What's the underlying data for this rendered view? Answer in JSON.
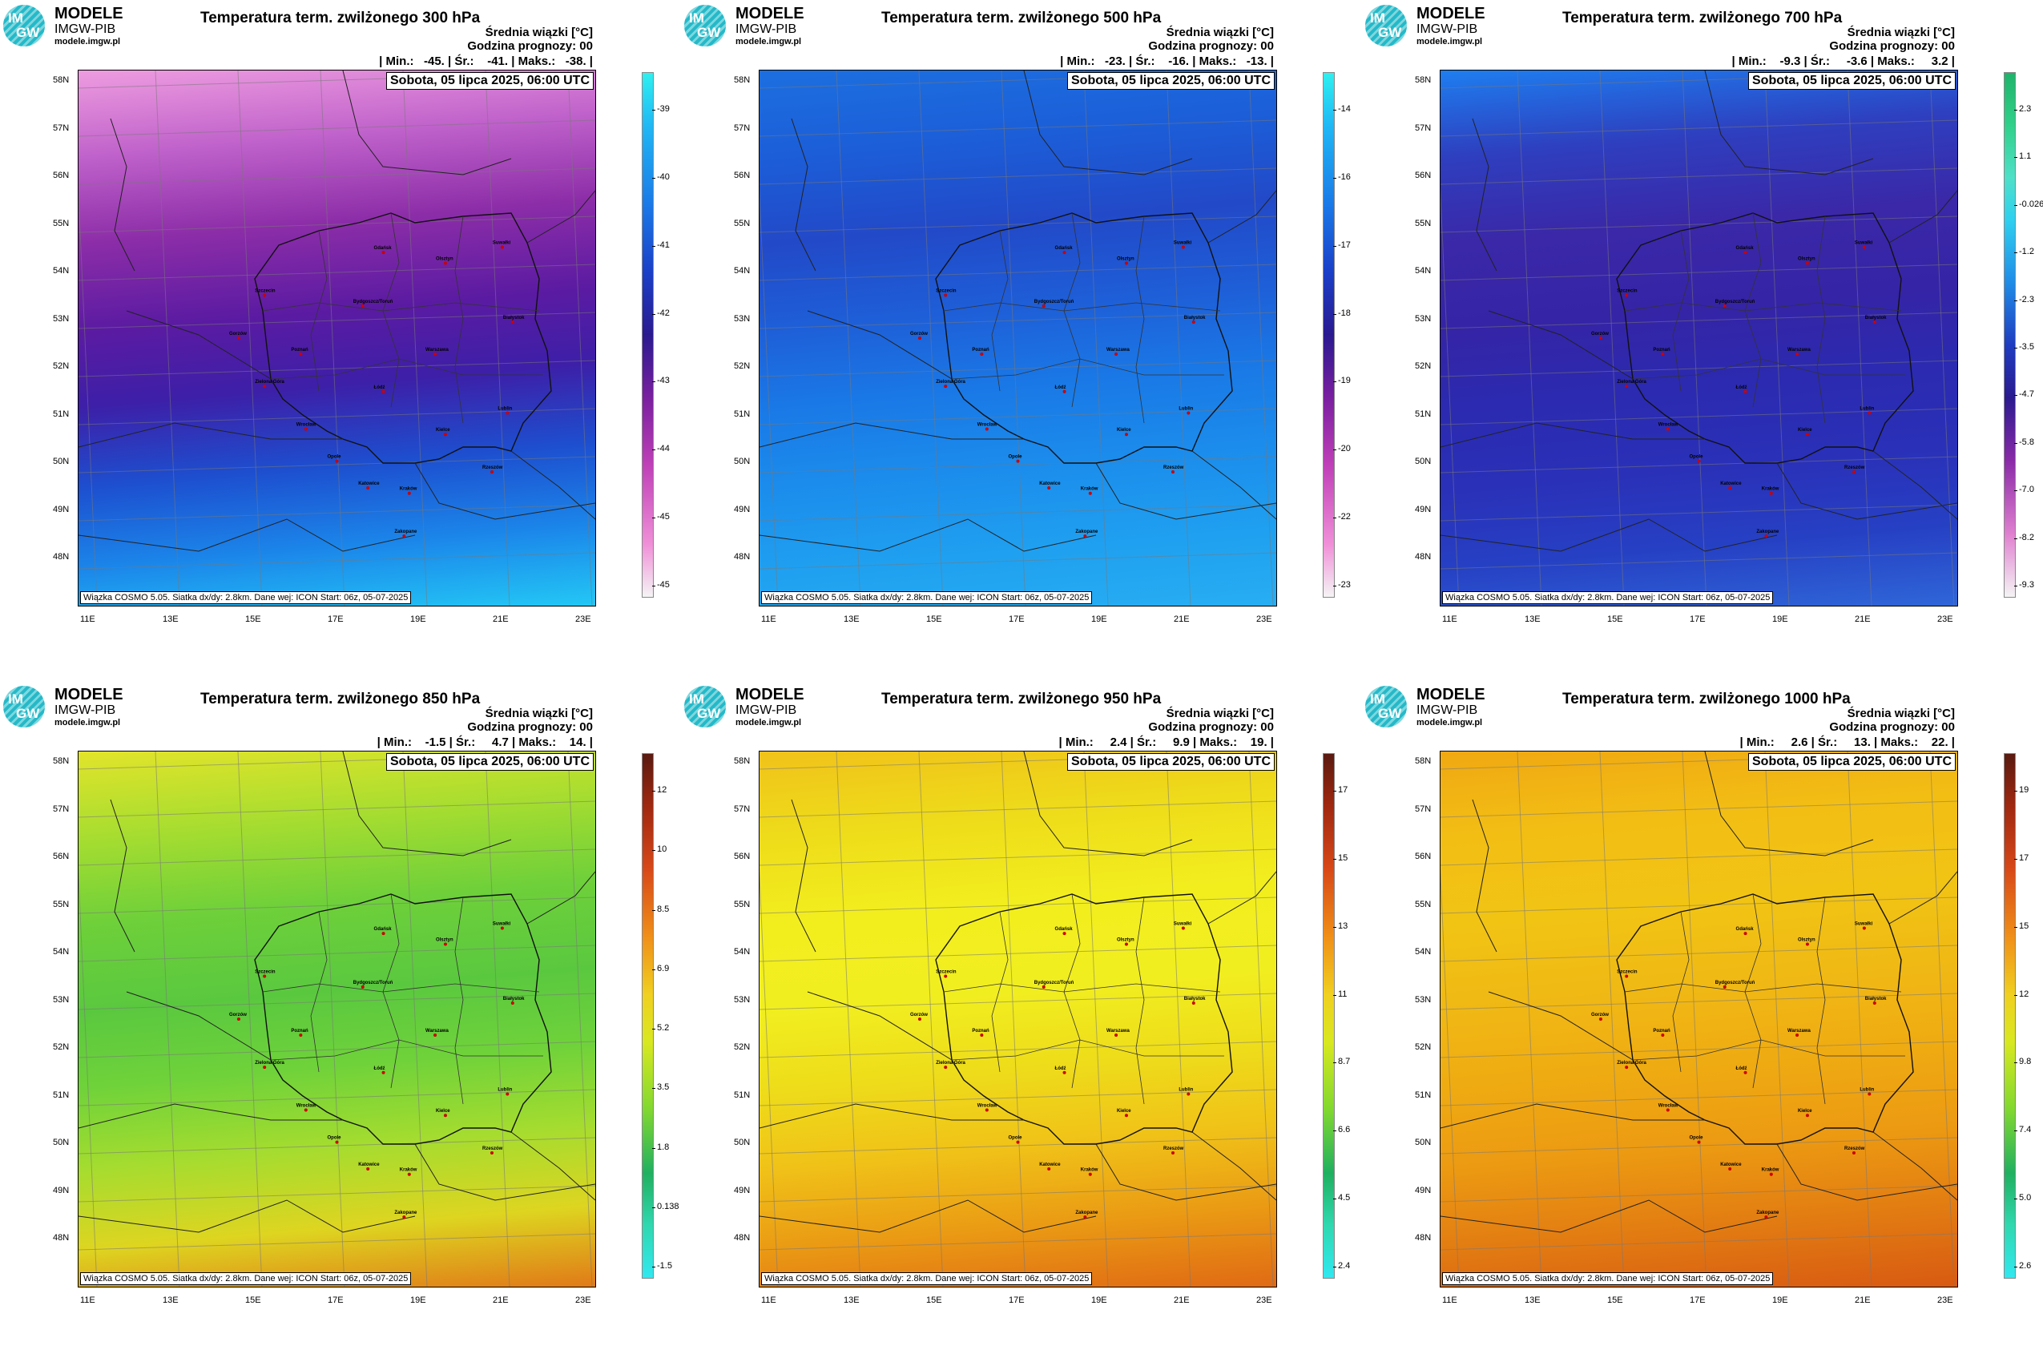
{
  "logo": {
    "title": "MODELE",
    "sub": "IMGW-PIB",
    "url": "modele.imgw.pl",
    "badge_top": "IM",
    "badge_bottom": "GW"
  },
  "common": {
    "mean_label": "Średnia wiązki [°C]",
    "forecast_hour": "Godzina prognozy: 00",
    "date": "Sobota, 05 lipca 2025, 06:00 UTC",
    "footer": "Wiązka COSMO 5.05. Siatka dx/dy: 2.8km. Dane wej: ICON Start: 06z, 05-07-2025",
    "lat_labels": [
      "58N",
      "57N",
      "56N",
      "55N",
      "54N",
      "53N",
      "52N",
      "51N",
      "50N",
      "49N",
      "48N"
    ],
    "lon_labels": [
      "11E",
      "13E",
      "15E",
      "17E",
      "19E",
      "21E",
      "23E"
    ]
  },
  "panels": [
    {
      "title": "Temperatura term. zwilżonego 300 hPa",
      "stats": "| Min.:   -45. | Śr.:    -41. | Maks.:   -38. |",
      "palette": "cold",
      "colorbar_ticks": [
        "-39",
        "-40",
        "-41",
        "-42",
        "-43",
        "-44",
        "-45",
        "-45"
      ],
      "gradient": [
        "#ee9ce0",
        "#c062cb",
        "#8c2da8",
        "#5b1ba2",
        "#3d1fa8",
        "#1d4fcf",
        "#1b86ea",
        "#23c7f5"
      ]
    },
    {
      "title": "Temperatura term. zwilżonego 500 hPa",
      "stats": "| Min.:   -23. | Śr.:    -16. | Maks.:   -13. |",
      "palette": "cold",
      "colorbar_ticks": [
        "-14",
        "-16",
        "-17",
        "-18",
        "-19",
        "-20",
        "-22",
        "-23"
      ],
      "gradient": [
        "#1c6fe0",
        "#1c5ed8",
        "#2249c8",
        "#1e5fd8",
        "#1a78e6",
        "#1b8cec",
        "#1f9ff0",
        "#27aef2"
      ]
    },
    {
      "title": "Temperatura term. zwilżonego 700 hPa",
      "stats": "| Min.:    -9.3 | Śr.:     -3.6 | Maks.:     3.2 |",
      "palette": "cold2",
      "colorbar_ticks": [
        "2.3",
        "1.1",
        "-0.026",
        "-1.2",
        "-2.3",
        "-3.5",
        "-4.7",
        "-5.8",
        "-7.0",
        "-8.2",
        "-9.3"
      ],
      "gradient": [
        "#1e7ef0",
        "#2e3fbf",
        "#3a28a8",
        "#3524a6",
        "#2b2ab0",
        "#2a30b8",
        "#2640c4",
        "#2f66d8"
      ]
    },
    {
      "title": "Temperatura term. zwilżonego 850 hPa",
      "stats": "| Min.:    -1.5 | Śr.:     4.7 | Maks.:    14. |",
      "palette": "warm",
      "colorbar_ticks": [
        "12",
        "10",
        "8.5",
        "6.9",
        "5.2",
        "3.5",
        "1.8",
        "0.138",
        "-1.5"
      ],
      "gradient": [
        "#e2e42a",
        "#a7dd30",
        "#6ed03a",
        "#5ac83f",
        "#6fd23a",
        "#a5dc2f",
        "#ded520",
        "#e07a18"
      ]
    },
    {
      "title": "Temperatura term. zwilżonego 950 hPa",
      "stats": "| Min.:     2.4 | Śr.:     9.9 | Maks.:    19. |",
      "palette": "warm",
      "colorbar_ticks": [
        "17",
        "15",
        "13",
        "11",
        "8.7",
        "6.6",
        "4.5",
        "2.4"
      ],
      "gradient": [
        "#f0c21a",
        "#eedc1a",
        "#f2ee1e",
        "#f1ee20",
        "#eedd1a",
        "#f0c218",
        "#ea9a14",
        "#e06a14"
      ]
    },
    {
      "title": "Temperatura term. zwilżonego 1000 hPa",
      "stats": "| Min.:     2.6 | Śr.:     13. | Maks.:    22. |",
      "palette": "warm",
      "colorbar_ticks": [
        "19",
        "17",
        "15",
        "12",
        "9.8",
        "7.4",
        "5.0",
        "2.6"
      ],
      "gradient": [
        "#f0a812",
        "#f2be14",
        "#f1c414",
        "#f0b814",
        "#efab12",
        "#ec9a12",
        "#e27c12",
        "#d85a12"
      ]
    }
  ],
  "cities": [
    "Gdańsk",
    "Olsztyn",
    "Suwałki",
    "Szczecin",
    "Bydgoszcz/Toruń",
    "Białystok",
    "Gorzów",
    "Poznań",
    "Warszawa",
    "Zielona Góra",
    "Łódź",
    "Lublin",
    "Wrocław",
    "Kielce",
    "Opole",
    "Katowice",
    "Kraków",
    "Rzeszów",
    "Zakopane"
  ]
}
